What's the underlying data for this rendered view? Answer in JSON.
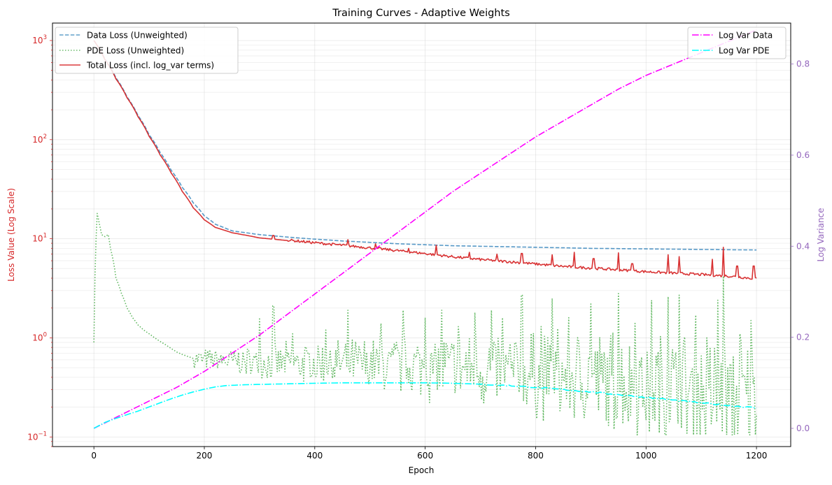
{
  "chart_data": {
    "type": "line",
    "title": "Training Curves - Adaptive Weights",
    "xlabel": "Epoch",
    "ylabel_left": "Loss Value (Log Scale)",
    "ylabel_right": "Log Variance",
    "xlim": [
      -75,
      1262
    ],
    "ylim_left": [
      0.08,
      1500
    ],
    "yscale_left": "log",
    "ylim_right": [
      -0.04,
      0.89
    ],
    "x_ticks": [
      0,
      200,
      400,
      600,
      800,
      1000,
      1200
    ],
    "y_left_ticks": [
      {
        "value": 0.1,
        "label": "10",
        "exp": "−1"
      },
      {
        "value": 1,
        "label": "10",
        "exp": "0"
      },
      {
        "value": 10,
        "label": "10",
        "exp": "1"
      },
      {
        "value": 100,
        "label": "10",
        "exp": "2"
      },
      {
        "value": 1000,
        "label": "10",
        "exp": "3"
      }
    ],
    "y_right_ticks": [
      "0.0",
      "0.2",
      "0.4",
      "0.6",
      "0.8"
    ],
    "grid": true,
    "left_axis_color": "#d62728",
    "right_axis_color": "#9467bd",
    "left_legend_position": "upper left",
    "right_legend_position": "upper right",
    "series": [
      {
        "name": "Data Loss (Unweighted)",
        "axis": "left",
        "color": "#1f77b4",
        "style": "dashed",
        "points": [
          [
            0,
            1000
          ],
          [
            20,
            650
          ],
          [
            40,
            420
          ],
          [
            60,
            270
          ],
          [
            80,
            175
          ],
          [
            100,
            112
          ],
          [
            120,
            74
          ],
          [
            140,
            49
          ],
          [
            160,
            33
          ],
          [
            180,
            23
          ],
          [
            200,
            17
          ],
          [
            220,
            14
          ],
          [
            250,
            12
          ],
          [
            300,
            11
          ],
          [
            350,
            10.4
          ],
          [
            400,
            9.9
          ],
          [
            450,
            9.5
          ],
          [
            500,
            9.2
          ],
          [
            550,
            8.9
          ],
          [
            600,
            8.7
          ],
          [
            650,
            8.5
          ],
          [
            700,
            8.4
          ],
          [
            750,
            8.3
          ],
          [
            800,
            8.2
          ],
          [
            850,
            8.1
          ],
          [
            900,
            8.0
          ],
          [
            950,
            7.95
          ],
          [
            1000,
            7.9
          ],
          [
            1050,
            7.85
          ],
          [
            1100,
            7.8
          ],
          [
            1150,
            7.75
          ],
          [
            1200,
            7.7
          ]
        ]
      },
      {
        "name": "PDE Loss (Unweighted)",
        "axis": "left",
        "color": "#2ca02c",
        "style": "dotted",
        "points": [
          [
            0,
            0.9
          ],
          [
            3,
            6
          ],
          [
            6,
            18
          ],
          [
            10,
            14
          ],
          [
            14,
            11
          ],
          [
            20,
            10.5
          ],
          [
            26,
            11
          ],
          [
            30,
            8
          ],
          [
            40,
            4
          ],
          [
            50,
            2.8
          ],
          [
            60,
            2
          ],
          [
            70,
            1.6
          ],
          [
            80,
            1.35
          ],
          [
            90,
            1.2
          ],
          [
            100,
            1.1
          ],
          [
            110,
            1
          ],
          [
            120,
            0.92
          ],
          [
            130,
            0.85
          ],
          [
            140,
            0.78
          ],
          [
            150,
            0.72
          ],
          [
            160,
            0.68
          ],
          [
            170,
            0.65
          ],
          [
            180,
            0.62
          ],
          [
            190,
            0.6
          ],
          [
            200,
            0.59
          ],
          [
            220,
            0.58
          ],
          [
            240,
            0.57
          ],
          [
            260,
            0.56
          ],
          [
            280,
            0.55
          ],
          [
            300,
            0.55
          ],
          [
            320,
            0.54
          ],
          [
            340,
            0.54
          ],
          [
            360,
            0.53
          ],
          [
            380,
            0.53
          ],
          [
            400,
            0.52
          ],
          [
            420,
            0.52
          ],
          [
            440,
            0.52
          ],
          [
            460,
            0.51
          ],
          [
            480,
            0.51
          ],
          [
            500,
            0.5
          ],
          [
            520,
            0.5
          ],
          [
            540,
            0.49
          ],
          [
            560,
            0.49
          ],
          [
            580,
            0.48
          ],
          [
            600,
            0.47
          ],
          [
            620,
            0.47
          ],
          [
            640,
            0.46
          ],
          [
            660,
            0.45
          ],
          [
            680,
            0.45
          ],
          [
            700,
            0.44
          ],
          [
            720,
            0.43
          ],
          [
            740,
            0.42
          ],
          [
            760,
            0.41
          ],
          [
            780,
            0.4
          ],
          [
            800,
            0.39
          ],
          [
            820,
            0.38
          ],
          [
            840,
            0.37
          ],
          [
            860,
            0.36
          ],
          [
            880,
            0.35
          ],
          [
            900,
            0.34
          ],
          [
            920,
            0.33
          ],
          [
            940,
            0.32
          ],
          [
            960,
            0.31
          ],
          [
            980,
            0.3
          ],
          [
            1000,
            0.29
          ],
          [
            1020,
            0.28
          ],
          [
            1040,
            0.27
          ],
          [
            1060,
            0.26
          ],
          [
            1080,
            0.25
          ],
          [
            1100,
            0.24
          ],
          [
            1120,
            0.23
          ],
          [
            1140,
            0.22
          ],
          [
            1160,
            0.21
          ],
          [
            1180,
            0.2
          ],
          [
            1200,
            0.19
          ]
        ]
      },
      {
        "name": "Total Loss (incl. log_var terms)",
        "axis": "left",
        "color": "#d62728",
        "style": "solid",
        "points": [
          [
            0,
            1000
          ],
          [
            20,
            640
          ],
          [
            40,
            410
          ],
          [
            60,
            265
          ],
          [
            80,
            170
          ],
          [
            100,
            108
          ],
          [
            120,
            70
          ],
          [
            140,
            46
          ],
          [
            160,
            30
          ],
          [
            180,
            20.5
          ],
          [
            200,
            15.5
          ],
          [
            220,
            13
          ],
          [
            250,
            11.5
          ],
          [
            300,
            10.2
          ],
          [
            350,
            9.6
          ],
          [
            400,
            9.0
          ],
          [
            450,
            8.5
          ],
          [
            500,
            8.0
          ],
          [
            550,
            7.5
          ],
          [
            600,
            7.0
          ],
          [
            650,
            6.5
          ],
          [
            700,
            6.1
          ],
          [
            750,
            5.8
          ],
          [
            800,
            5.5
          ],
          [
            850,
            5.2
          ],
          [
            900,
            5.0
          ],
          [
            950,
            4.8
          ],
          [
            1000,
            4.6
          ],
          [
            1050,
            4.45
          ],
          [
            1100,
            4.3
          ],
          [
            1150,
            4.15
          ],
          [
            1200,
            3.9
          ]
        ]
      },
      {
        "name": "Log Var Data",
        "axis": "right",
        "color": "#ff00ff",
        "style": "dashdot",
        "points": [
          [
            0,
            0.0
          ],
          [
            50,
            0.03
          ],
          [
            100,
            0.06
          ],
          [
            150,
            0.09
          ],
          [
            200,
            0.125
          ],
          [
            250,
            0.165
          ],
          [
            300,
            0.205
          ],
          [
            350,
            0.25
          ],
          [
            400,
            0.295
          ],
          [
            450,
            0.34
          ],
          [
            500,
            0.385
          ],
          [
            550,
            0.43
          ],
          [
            600,
            0.475
          ],
          [
            650,
            0.52
          ],
          [
            700,
            0.56
          ],
          [
            750,
            0.6
          ],
          [
            800,
            0.64
          ],
          [
            850,
            0.675
          ],
          [
            900,
            0.71
          ],
          [
            950,
            0.745
          ],
          [
            1000,
            0.775
          ],
          [
            1050,
            0.8
          ],
          [
            1100,
            0.825
          ],
          [
            1150,
            0.85
          ],
          [
            1200,
            0.875
          ]
        ]
      },
      {
        "name": "Log Var PDE",
        "axis": "right",
        "color": "#00ffff",
        "style": "dashdot",
        "points": [
          [
            0,
            0.0
          ],
          [
            20,
            0.013
          ],
          [
            40,
            0.022
          ],
          [
            60,
            0.03
          ],
          [
            80,
            0.038
          ],
          [
            100,
            0.047
          ],
          [
            120,
            0.056
          ],
          [
            140,
            0.065
          ],
          [
            160,
            0.073
          ],
          [
            180,
            0.08
          ],
          [
            200,
            0.086
          ],
          [
            220,
            0.091
          ],
          [
            240,
            0.094
          ],
          [
            280,
            0.096
          ],
          [
            320,
            0.097
          ],
          [
            360,
            0.098
          ],
          [
            400,
            0.099
          ],
          [
            450,
            0.1
          ],
          [
            500,
            0.1
          ],
          [
            550,
            0.1
          ],
          [
            600,
            0.1
          ],
          [
            650,
            0.099
          ],
          [
            700,
            0.097
          ],
          [
            750,
            0.094
          ],
          [
            800,
            0.09
          ],
          [
            850,
            0.085
          ],
          [
            900,
            0.08
          ],
          [
            950,
            0.074
          ],
          [
            1000,
            0.068
          ],
          [
            1050,
            0.062
          ],
          [
            1100,
            0.056
          ],
          [
            1150,
            0.05
          ],
          [
            1200,
            0.045
          ]
        ]
      }
    ],
    "spikes": {
      "total_loss": [
        [
          325,
          10.8
        ],
        [
          460,
          9.8
        ],
        [
          510,
          8.9
        ],
        [
          570,
          8.0
        ],
        [
          620,
          8.6
        ],
        [
          680,
          7.3
        ],
        [
          730,
          7.0
        ],
        [
          775,
          7.1
        ],
        [
          830,
          6.9
        ],
        [
          870,
          7.3
        ],
        [
          905,
          6.3
        ],
        [
          950,
          7.2
        ],
        [
          975,
          5.6
        ],
        [
          1040,
          6.9
        ],
        [
          1060,
          6.6
        ],
        [
          1120,
          6.2
        ],
        [
          1140,
          8.2
        ],
        [
          1165,
          5.3
        ],
        [
          1195,
          5.3
        ]
      ],
      "pde_loss": [
        [
          300,
          1.6
        ],
        [
          325,
          2.1
        ],
        [
          360,
          1.1
        ],
        [
          420,
          1.2
        ],
        [
          460,
          1.9
        ],
        [
          520,
          1.4
        ],
        [
          560,
          1.9
        ],
        [
          600,
          1.6
        ],
        [
          630,
          1.9
        ],
        [
          660,
          1.3
        ],
        [
          690,
          1.8
        ],
        [
          720,
          1.9
        ],
        [
          740,
          1.6
        ],
        [
          775,
          2.7
        ],
        [
          810,
          1.3
        ],
        [
          830,
          2.5
        ],
        [
          860,
          1.6
        ],
        [
          900,
          2.2
        ],
        [
          950,
          2.8
        ],
        [
          980,
          1.4
        ],
        [
          1010,
          2.4
        ],
        [
          1040,
          2.6
        ],
        [
          1060,
          2.7
        ],
        [
          1090,
          1.7
        ],
        [
          1110,
          1.0
        ],
        [
          1130,
          2.4
        ],
        [
          1140,
          4.2
        ],
        [
          1170,
          1.1
        ],
        [
          1190,
          1.5
        ]
      ]
    }
  }
}
